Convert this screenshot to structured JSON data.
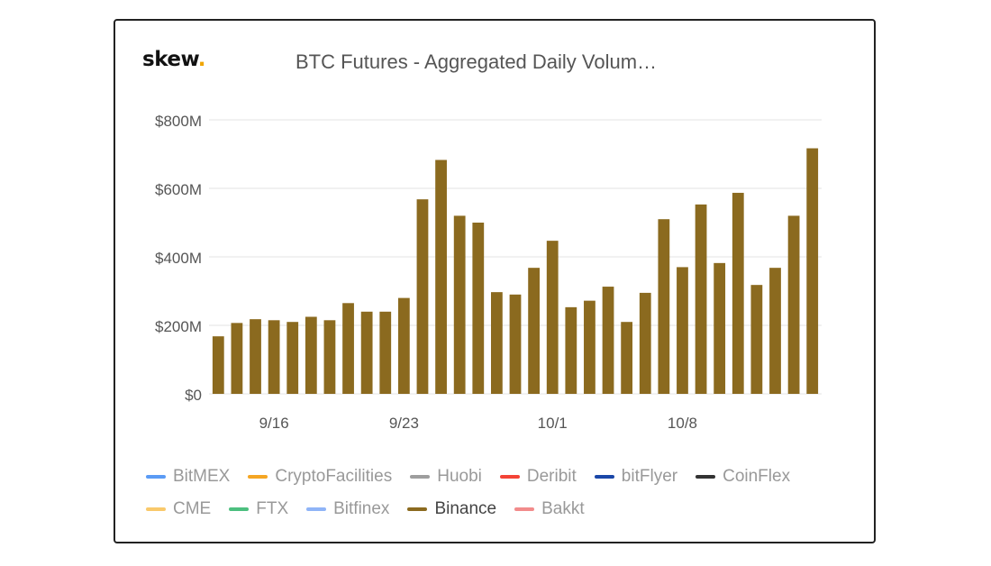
{
  "logo": {
    "text": "skew",
    "dot": "."
  },
  "title": "BTC Futures - Aggregated Daily Volum…",
  "chart_data": {
    "type": "bar",
    "title": "BTC Futures - Aggregated Daily Volum…",
    "ylim": [
      0,
      800
    ],
    "y_ticks": [
      {
        "value": 0,
        "label": "$0"
      },
      {
        "value": 200,
        "label": "$200M"
      },
      {
        "value": 400,
        "label": "$400M"
      },
      {
        "value": 600,
        "label": "$600M"
      },
      {
        "value": 800,
        "label": "$800M"
      }
    ],
    "x_ticks": [
      {
        "index": 3,
        "label": "9/16"
      },
      {
        "index": 10,
        "label": "9/23"
      },
      {
        "index": 18,
        "label": "10/1"
      },
      {
        "index": 25,
        "label": "10/8"
      }
    ],
    "grid": true,
    "series": [
      {
        "name": "Binance",
        "color": "#8b6a1f",
        "values": [
          168,
          207,
          218,
          215,
          210,
          225,
          215,
          265,
          240,
          240,
          280,
          568,
          683,
          520,
          500,
          297,
          290,
          368,
          447,
          253,
          272,
          313,
          210,
          295,
          510,
          370,
          553,
          382,
          587,
          318,
          368,
          520,
          717
        ]
      }
    ]
  },
  "legend": {
    "rows": [
      [
        {
          "label": "BitMEX",
          "color": "#5b9bf5",
          "active": false
        },
        {
          "label": "CryptoFacilities",
          "color": "#f5a623",
          "active": false
        },
        {
          "label": "Huobi",
          "color": "#9e9e9e",
          "active": false
        },
        {
          "label": "Deribit",
          "color": "#f44336",
          "active": false
        },
        {
          "label": "bitFlyer",
          "color": "#1a47a8",
          "active": false
        },
        {
          "label": "CoinFlex",
          "color": "#333333",
          "active": false
        }
      ],
      [
        {
          "label": "CME",
          "color": "#f9c96b",
          "active": false
        },
        {
          "label": "FTX",
          "color": "#4cbf7f",
          "active": false
        },
        {
          "label": "Bitfinex",
          "color": "#8fb4f7",
          "active": false
        },
        {
          "label": "Binance",
          "color": "#8b6a1f",
          "active": true
        },
        {
          "label": "Bakkt",
          "color": "#f28b8b",
          "active": false
        }
      ]
    ]
  }
}
